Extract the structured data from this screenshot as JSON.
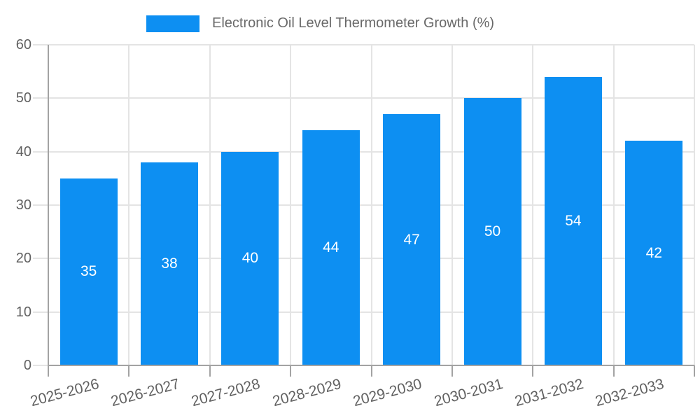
{
  "legend": {
    "label": "Electronic Oil Level Thermometer Growth (%)"
  },
  "chart_data": {
    "type": "bar",
    "title": "Electronic Oil Level Thermometer Growth (%)",
    "categories": [
      "2025-2026",
      "2026-2027",
      "2027-2028",
      "2028-2029",
      "2029-2030",
      "2030-2031",
      "2031-2032",
      "2032-2033"
    ],
    "values": [
      35,
      38,
      40,
      44,
      47,
      50,
      54,
      42
    ],
    "xlabel": "",
    "ylabel": "",
    "ylim": [
      0,
      60
    ],
    "yticks": [
      0,
      10,
      20,
      30,
      40,
      50,
      60
    ],
    "grid": true,
    "legend_position": "top-center",
    "bar_label_position": "inside-center",
    "x_tick_rotation_deg": -15,
    "colors": {
      "bar": "#0D8FF2",
      "grid": "#e4e4e4",
      "axis": "#a3a3a3",
      "tick_text": "#616161",
      "legend_text": "#696969",
      "value_label": "#ffffff",
      "background": "#ffffff"
    }
  }
}
